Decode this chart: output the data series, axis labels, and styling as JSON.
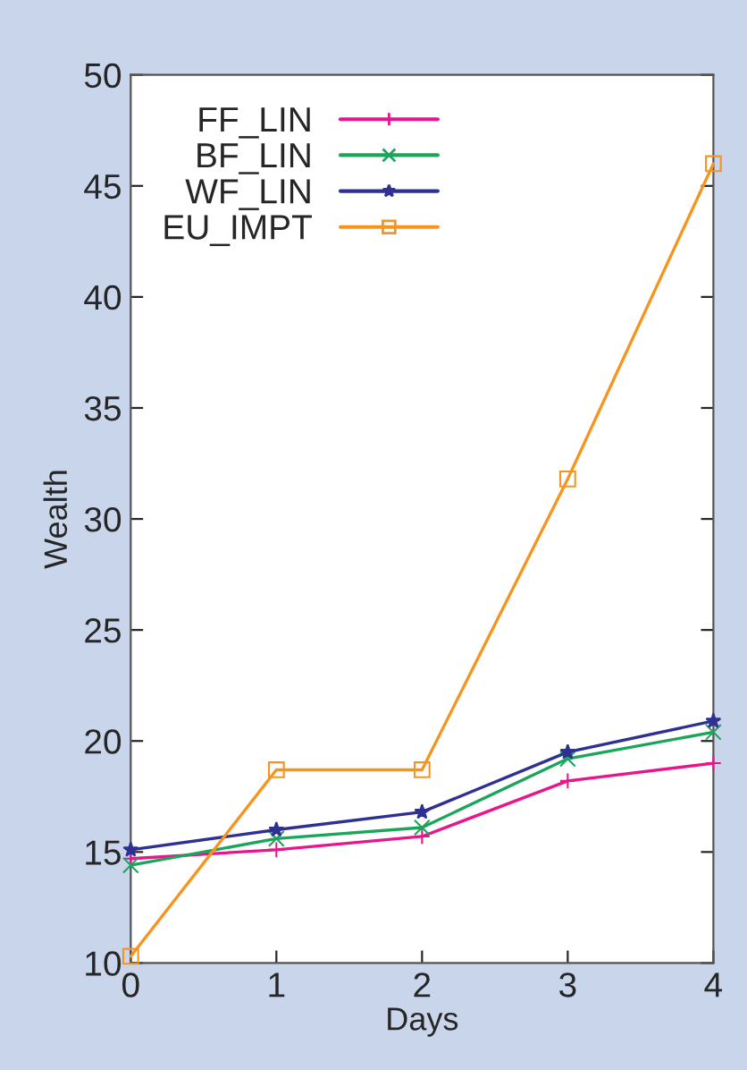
{
  "chart_data": {
    "type": "line",
    "xlabel": "Days",
    "ylabel": "Wealth",
    "x": [
      0,
      1,
      2,
      3,
      4
    ],
    "series": [
      {
        "name": "FF_LIN",
        "color": "#e8168c",
        "values": [
          14.7,
          15.1,
          15.7,
          18.2,
          19.0
        ],
        "marker": "cross"
      },
      {
        "name": "BF_LIN",
        "color": "#1aa55a",
        "values": [
          14.4,
          15.6,
          16.1,
          19.2,
          20.4
        ],
        "marker": "x"
      },
      {
        "name": "WF_LIN",
        "color": "#2e3192",
        "values": [
          15.1,
          16.0,
          16.8,
          19.5,
          20.9
        ],
        "marker": "star"
      },
      {
        "name": "EU_IMPT",
        "color": "#f7941d",
        "values": [
          10.3,
          18.7,
          18.7,
          31.8,
          46.0
        ],
        "marker": "square"
      }
    ],
    "xlim": [
      0,
      4
    ],
    "xticks": [
      0,
      1,
      2,
      3,
      4
    ],
    "ylim": [
      10,
      50
    ],
    "yticks": [
      10,
      15,
      20,
      25,
      30,
      35,
      40,
      45,
      50
    ],
    "legend": "top left",
    "grid": false
  }
}
